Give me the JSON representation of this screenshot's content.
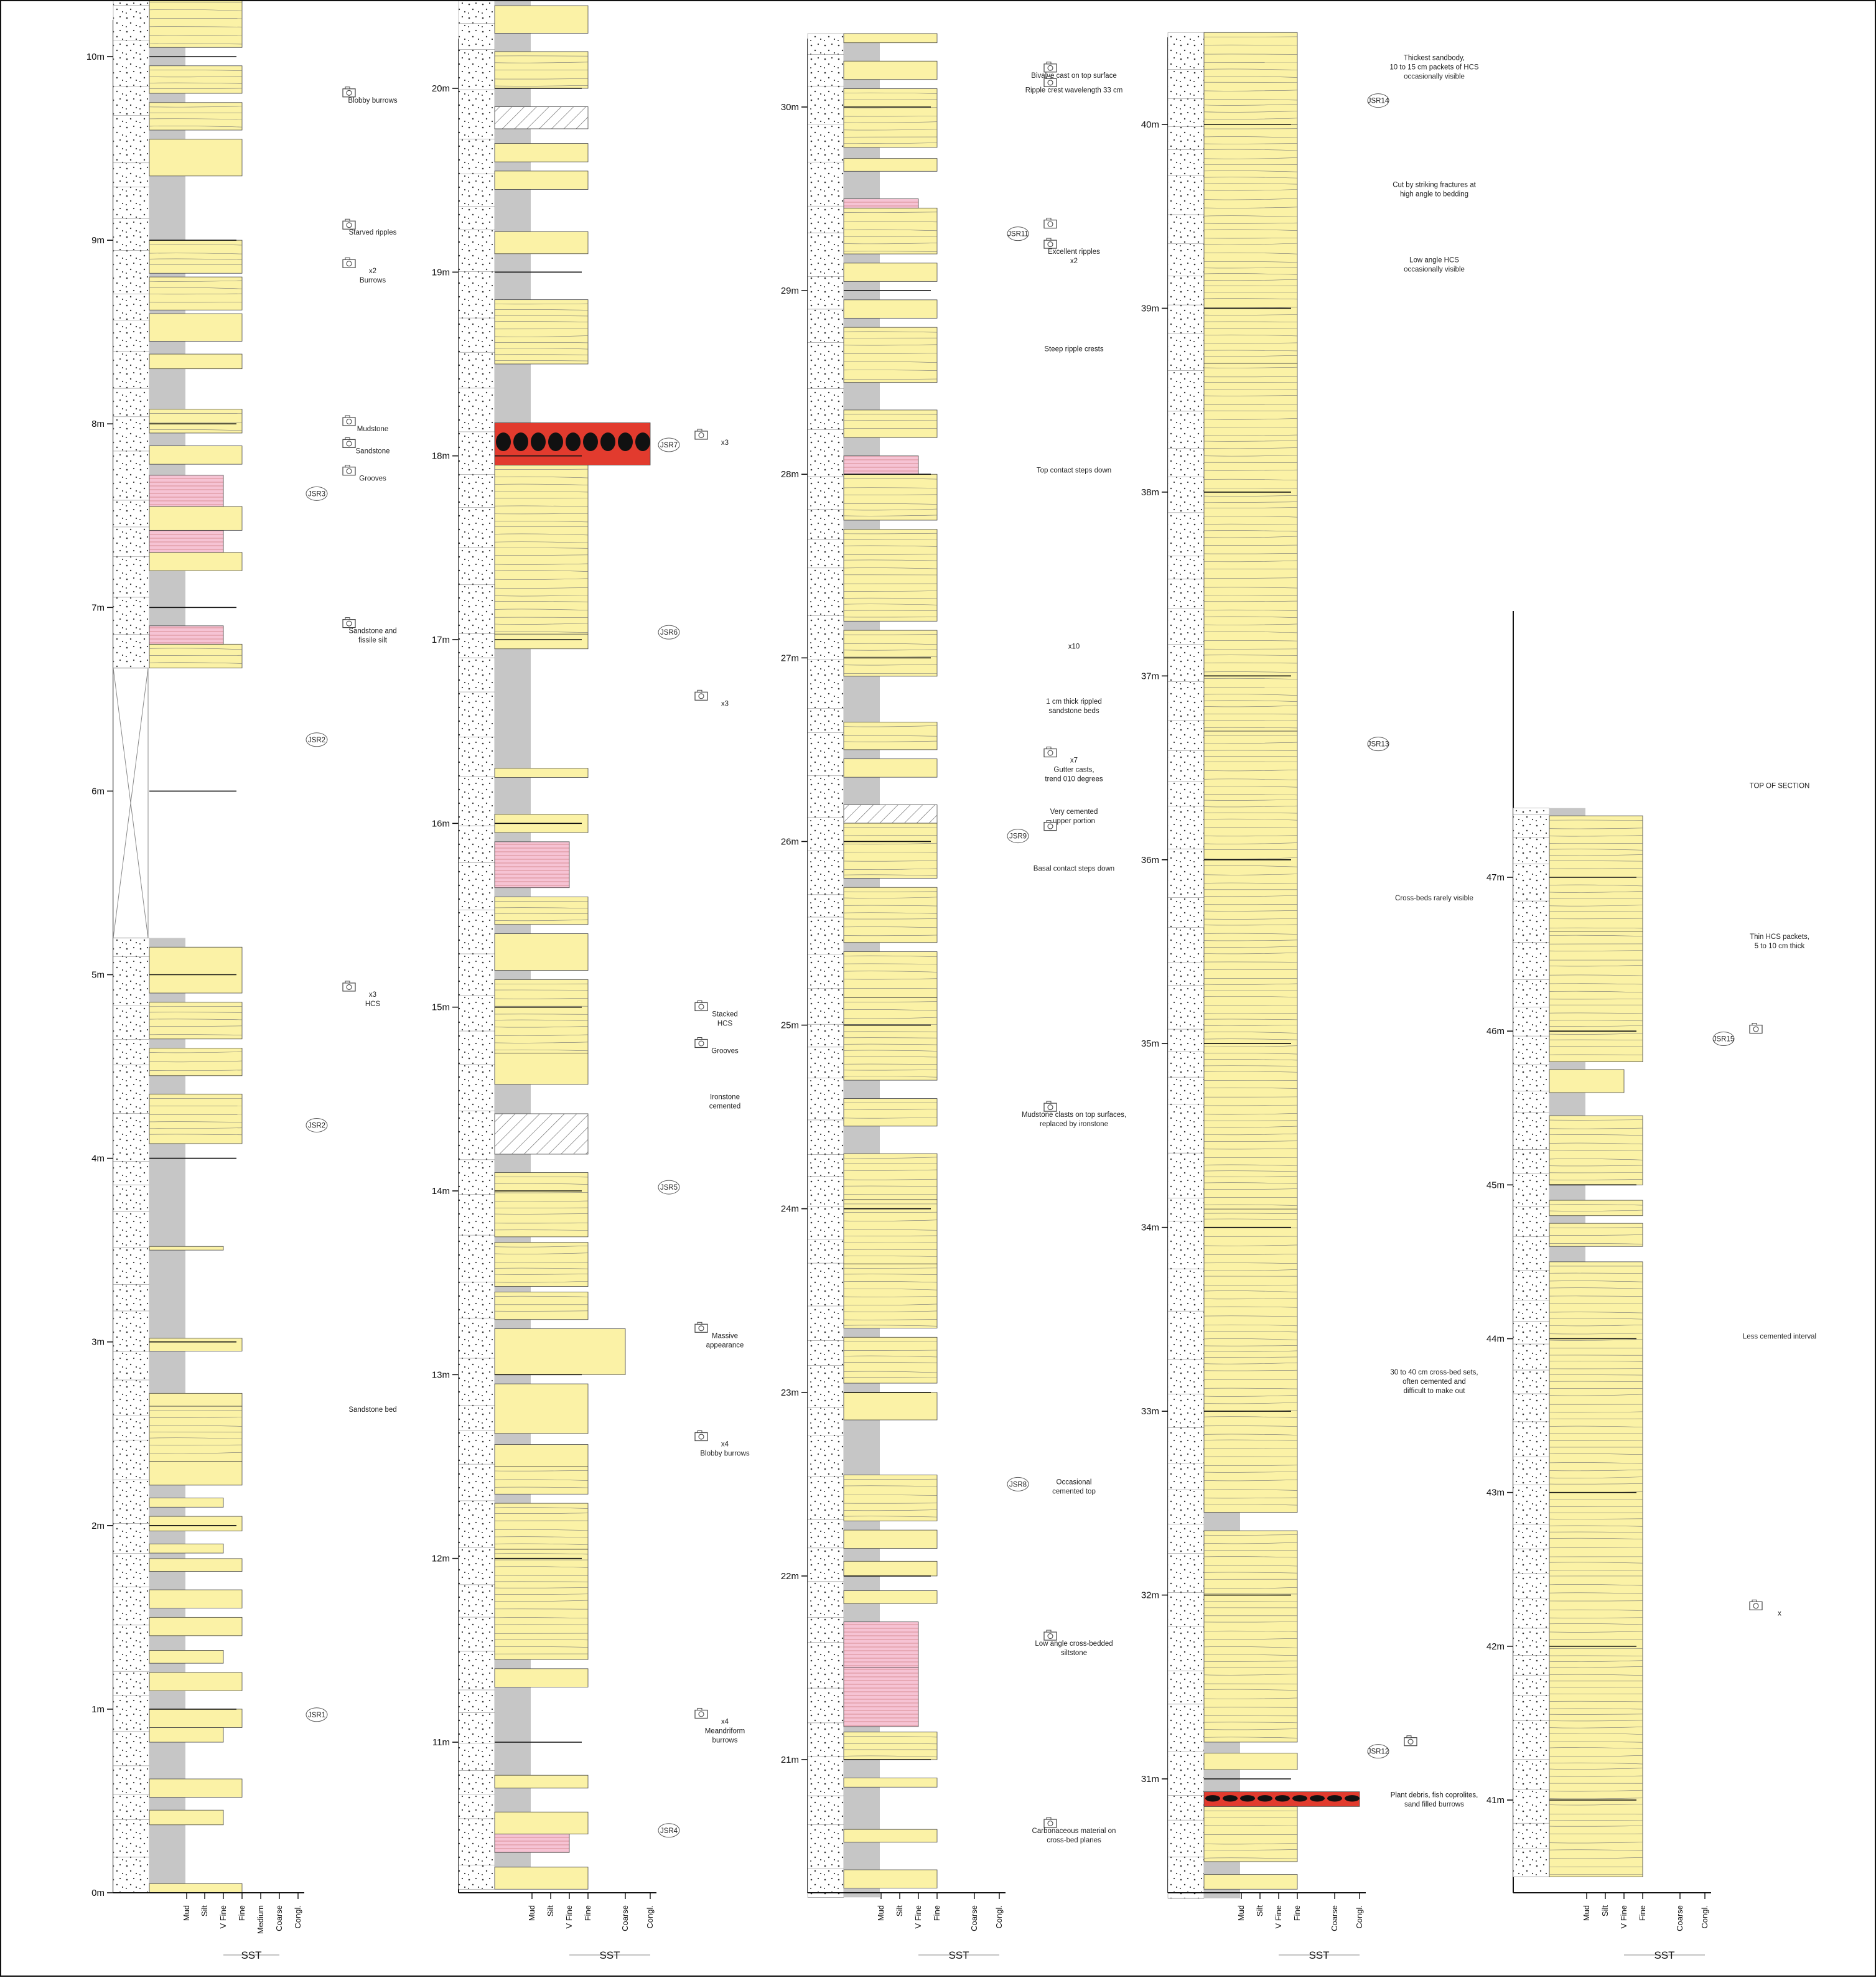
{
  "columns": [
    {
      "id": "c1",
      "ticks": [
        "0m",
        "1m",
        "2m",
        "3m",
        "4m",
        "5m",
        "6m",
        "7m",
        "8m",
        "9m",
        "10m"
      ],
      "axis_labels": [
        "Mud",
        "Silt",
        "V Fine",
        "Fine",
        "Medium",
        "Coarse",
        "Congl."
      ],
      "axis_group": "SST",
      "annotations": [
        {
          "lines": [
            "Blobby burrows"
          ],
          "at": 9.75,
          "cam": true
        },
        {
          "lines": [
            "Starved ripples"
          ],
          "at": 9.03,
          "cam": true
        },
        {
          "lines": [
            "x2",
            "Burrows"
          ],
          "at": 8.82,
          "cam": true
        },
        {
          "lines": [
            "Mudstone"
          ],
          "at": 7.96,
          "cam": true
        },
        {
          "lines": [
            "Sandstone"
          ],
          "at": 7.84,
          "cam": true
        },
        {
          "lines": [
            "Grooves"
          ],
          "at": 7.69,
          "cam": true
        },
        {
          "lines": [
            "JSR3"
          ],
          "at": 7.62,
          "sample": true
        },
        {
          "lines": [
            "Sandstone and",
            "fissile silt"
          ],
          "at": 6.86,
          "cam": true
        },
        {
          "lines": [
            "JSR2"
          ],
          "at": 6.28,
          "sample": true
        },
        {
          "lines": [
            "x3",
            "HCS"
          ],
          "at": 4.88,
          "cam": true
        },
        {
          "lines": [
            "JSR2"
          ],
          "at": 4.18,
          "sample": true
        },
        {
          "lines": [
            "Sandstone bed"
          ],
          "at": 2.62
        },
        {
          "lines": [
            "JSR1"
          ],
          "at": 0.97,
          "sample": true
        }
      ]
    },
    {
      "id": "c2",
      "ticks": [
        "11m",
        "12m",
        "13m",
        "14m",
        "15m",
        "16m",
        "17m",
        "18m",
        "19m",
        "20m"
      ],
      "axis_labels": [
        "Mud",
        "Silt",
        "V Fine",
        "Fine",
        "Coarse",
        "Congl."
      ],
      "axis_group": "SST",
      "annotations": [
        {
          "lines": [
            "JSR7",
            "x3"
          ],
          "at": 18.06,
          "sample": true,
          "cam": true
        },
        {
          "lines": [
            "JSR6"
          ],
          "at": 17.04,
          "sample": true
        },
        {
          "lines": [
            "x3"
          ],
          "at": 16.64,
          "cam": true
        },
        {
          "lines": [
            "Stacked",
            "HCS"
          ],
          "at": 14.95,
          "cam": true
        },
        {
          "lines": [
            "Grooves"
          ],
          "at": 14.75,
          "cam": true
        },
        {
          "lines": [
            "Ironstone",
            "cemented"
          ],
          "at": 14.5
        },
        {
          "lines": [
            "JSR5"
          ],
          "at": 14.02,
          "sample": true
        },
        {
          "lines": [
            "Massive",
            "appearance"
          ],
          "at": 13.2,
          "cam": true
        },
        {
          "lines": [
            "x4",
            "Blobby burrows"
          ],
          "at": 12.61,
          "cam": true
        },
        {
          "lines": [
            "x4",
            "Meandriform",
            "burrows"
          ],
          "at": 11.1,
          "cam": true
        },
        {
          "lines": [
            "JSR4"
          ],
          "at": 10.52,
          "sample": true
        }
      ]
    },
    {
      "id": "c3",
      "ticks": [
        "21m",
        "22m",
        "23m",
        "24m",
        "25m",
        "26m",
        "27m",
        "28m",
        "29m",
        "30m"
      ],
      "axis_labels": [
        "Mud",
        "Silt",
        "V Fine",
        "Fine",
        "Coarse",
        "Congl."
      ],
      "axis_group": "SST",
      "annotations": [
        {
          "lines": [
            "Bivalve cast on top surface"
          ],
          "at": 30.16,
          "cam": true
        },
        {
          "lines": [
            "Ripple crest wavelength 33 cm"
          ],
          "at": 30.08,
          "cam": true
        },
        {
          "lines": [
            "JSR11"
          ],
          "at": 29.31,
          "sample": true,
          "cam": true
        },
        {
          "lines": [
            "Excellent ripples",
            "x2"
          ],
          "at": 29.2,
          "cam": true
        },
        {
          "lines": [
            "Steep ripple crests"
          ],
          "at": 28.67
        },
        {
          "lines": [
            "Top contact steps down"
          ],
          "at": 28.01
        },
        {
          "lines": [
            "x10"
          ],
          "at": 27.05
        },
        {
          "lines": [
            "1 cm thick rippled",
            "sandstone beds"
          ],
          "at": 26.75
        },
        {
          "lines": [
            "x7",
            "Gutter casts,",
            "trend 010 degrees"
          ],
          "at": 26.43,
          "sample": true,
          "cam": true
        },
        {
          "lines": [
            "Very cemented",
            "upper portion"
          ],
          "at": 26.15
        },
        {
          "lines": [
            "JSR9"
          ],
          "at": 26.03,
          "sample": true,
          "cam": true
        },
        {
          "lines": [
            "Basal contact steps down"
          ],
          "at": 25.84
        },
        {
          "lines": [
            "Mudstone clasts on top surfaces,",
            "replaced by ironstone"
          ],
          "at": 24.5,
          "cam": true
        },
        {
          "lines": [
            "JSR8",
            "Occasional",
            "cemented top"
          ],
          "at": 22.5,
          "sample": true
        },
        {
          "lines": [
            "Low angle cross-bedded",
            "siltstone"
          ],
          "at": 21.62,
          "cam": true
        },
        {
          "lines": [
            "Carbonaceous material on",
            "cross-bed planes"
          ],
          "at": 20.6,
          "cam": true
        }
      ]
    },
    {
      "id": "c4",
      "ticks": [
        "31m",
        "32m",
        "33m",
        "34m",
        "35m",
        "36m",
        "37m",
        "38m",
        "39m",
        "40m"
      ],
      "axis_labels": [
        "Mud",
        "Silt",
        "V Fine",
        "Fine",
        "Coarse",
        "Congl."
      ],
      "axis_group": "SST",
      "annotations": [
        {
          "lines": [
            "Thickest sandbody,",
            "10 to 15 cm packets of HCS",
            "occasionally visible"
          ],
          "at": 40.35
        },
        {
          "lines": [
            "JSR14"
          ],
          "at": 40.13,
          "sample": true
        },
        {
          "lines": [
            "Cut by striking fractures at",
            "high angle to bedding"
          ],
          "at": 39.66
        },
        {
          "lines": [
            "Low angle HCS",
            "occasionally visible"
          ],
          "at": 39.25
        },
        {
          "lines": [
            "JSR13"
          ],
          "at": 36.63,
          "sample": true
        },
        {
          "lines": [
            "Cross-beds rarely visible"
          ],
          "at": 35.78
        },
        {
          "lines": [
            "30 to 40 cm cross-bed sets,",
            "often cemented and",
            "difficult to make out"
          ],
          "at": 33.2
        },
        {
          "lines": [
            "JSR12"
          ],
          "at": 31.15,
          "sample": true,
          "cam": true
        },
        {
          "lines": [
            "Plant debris, fish coprolites,",
            "sand filled burrows"
          ],
          "at": 30.9
        }
      ]
    },
    {
      "id": "c5",
      "ticks": [
        "41m",
        "42m",
        "43m",
        "44m",
        "45m",
        "46m",
        "47m"
      ],
      "axis_labels": [
        "Mud",
        "Silt",
        "V Fine",
        "Fine",
        "Coarse",
        "Congl."
      ],
      "axis_group": "SST",
      "annotations": [
        {
          "lines": [
            "TOP OF SECTION"
          ],
          "at": 47.58
        },
        {
          "lines": [
            "Thin HCS packets,",
            "5 to 10 cm thick"
          ],
          "at": 46.6
        },
        {
          "lines": [
            "JSR15"
          ],
          "at": 45.95,
          "sample": true,
          "cam": true
        },
        {
          "lines": [
            "Less cemented interval"
          ],
          "at": 44.0
        },
        {
          "lines": [
            "x"
          ],
          "at": 42.2,
          "cam": true
        }
      ]
    }
  ]
}
